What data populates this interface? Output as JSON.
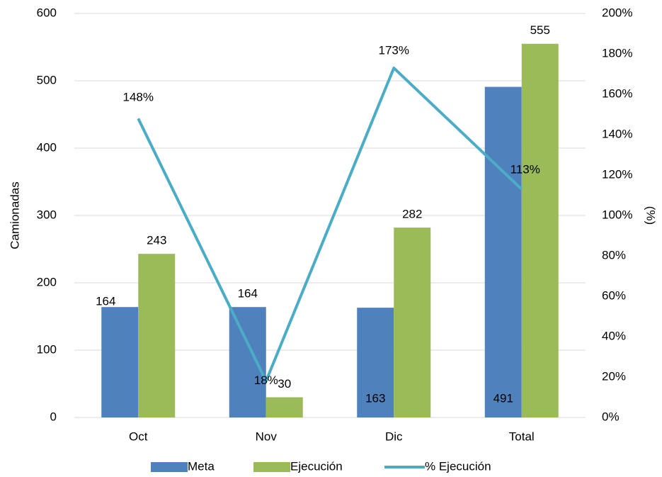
{
  "chart_data": {
    "type": "bar",
    "categories": [
      "Oct",
      "Nov",
      "Dic",
      "Total"
    ],
    "y_label": "Camionadas",
    "y2_label": "(%)",
    "ylim": [
      0,
      600
    ],
    "yticks": [
      0,
      100,
      200,
      300,
      400,
      500,
      600
    ],
    "y2lim": [
      0,
      200
    ],
    "y2ticks": [
      {
        "value": 0,
        "label": "0%"
      },
      {
        "value": 20,
        "label": "20%"
      },
      {
        "value": 40,
        "label": "40%"
      },
      {
        "value": 60,
        "label": "60%"
      },
      {
        "value": 80,
        "label": "80%"
      },
      {
        "value": 100,
        "label": "100%"
      },
      {
        "value": 120,
        "label": "120%"
      },
      {
        "value": 140,
        "label": "140%"
      },
      {
        "value": 160,
        "label": "160%"
      },
      {
        "value": 180,
        "label": "180%"
      },
      {
        "value": 200,
        "label": "200%"
      }
    ],
    "grid": true,
    "legend": "bottom",
    "series": [
      {
        "name": "Meta",
        "type": "bar",
        "color": "#4f81bd",
        "values": [
          164,
          164,
          163,
          491
        ]
      },
      {
        "name": "Ejecución",
        "type": "bar",
        "color": "#9bbb59",
        "values": [
          243,
          30,
          282,
          555
        ]
      },
      {
        "name": "% Ejecución",
        "type": "line",
        "axis": "y2",
        "color": "#4bacc6",
        "values": [
          148,
          18,
          173,
          113
        ],
        "value_labels": [
          "148%",
          "18%",
          "173%",
          "113%"
        ]
      }
    ]
  }
}
